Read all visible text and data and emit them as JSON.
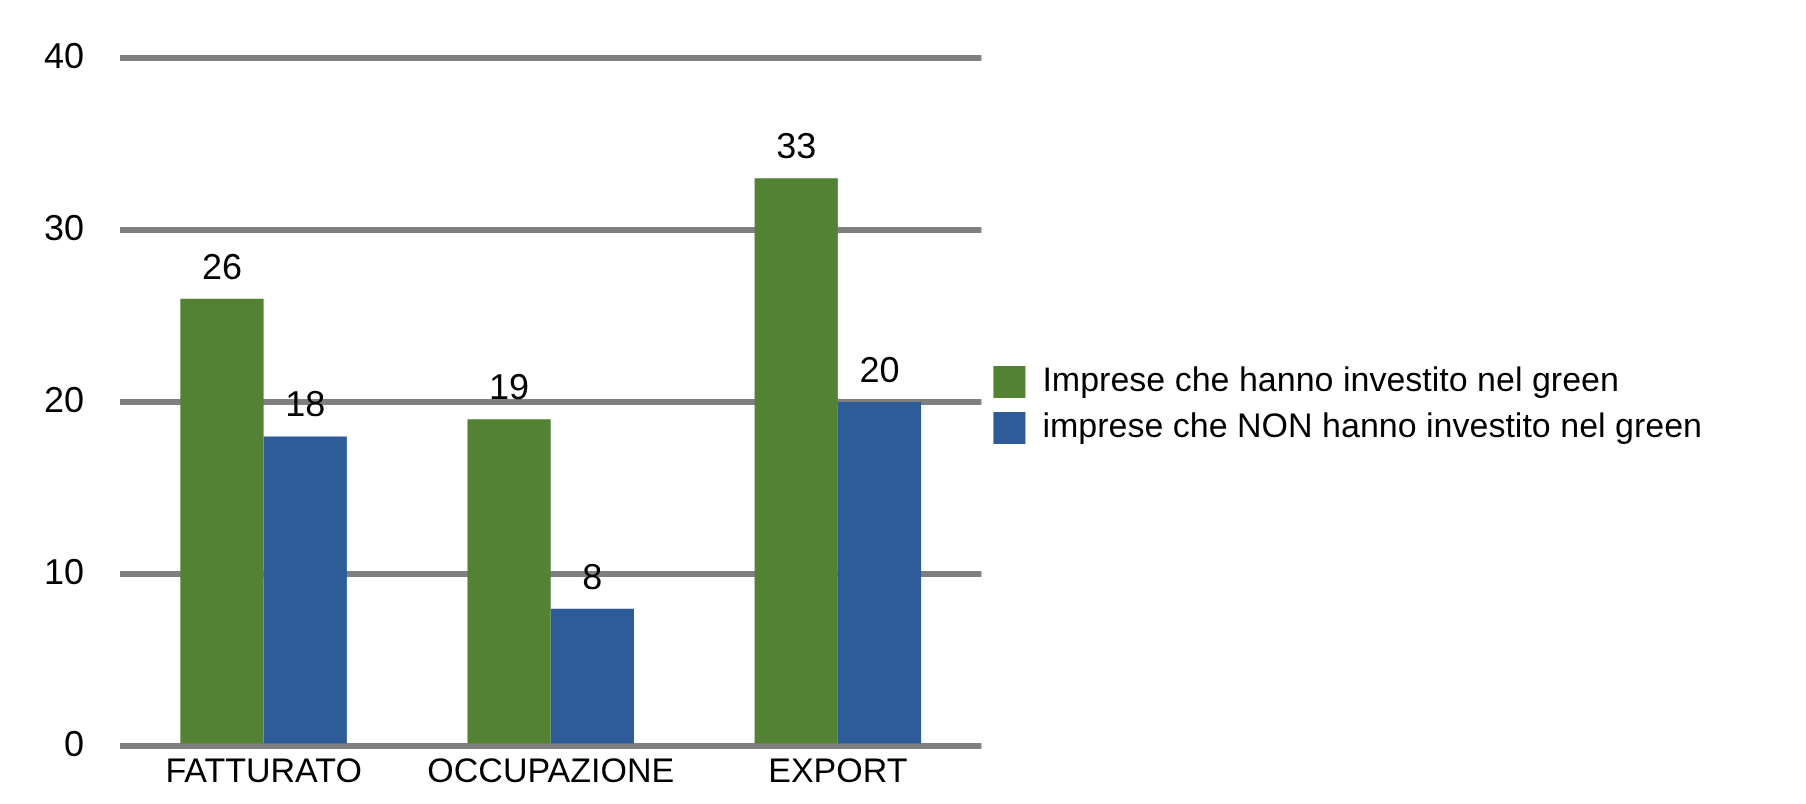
{
  "chart_data": {
    "type": "bar",
    "categories": [
      "FATTURATO",
      "OCCUPAZIONE",
      "EXPORT"
    ],
    "series": [
      {
        "name": "Imprese che hanno investito nel green",
        "color": "#548235",
        "values": [
          26,
          19,
          33
        ]
      },
      {
        "name": "imprese che NON hanno investito nel green",
        "color": "#2e5c99",
        "values": [
          18,
          8,
          20
        ]
      }
    ],
    "ylim": [
      0,
      40
    ],
    "yticks": [
      0,
      10,
      20,
      30,
      40
    ],
    "grid": "y",
    "legend": "right",
    "data_labels": true
  }
}
